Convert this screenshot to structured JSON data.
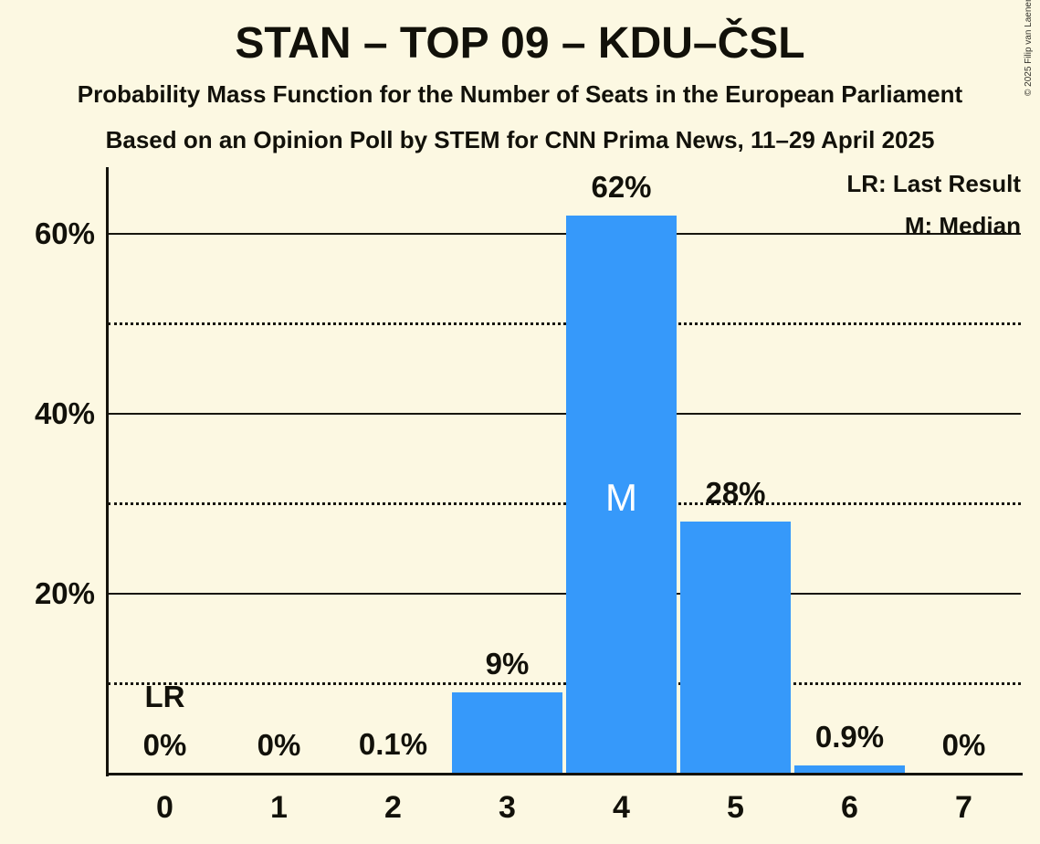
{
  "header": {
    "title": "STAN – TOP 09 – KDU–ČSL",
    "subtitle1": "Probability Mass Function for the Number of Seats in the European Parliament",
    "subtitle2": "Based on an Opinion Poll by STEM for CNN Prima News, 11–29 April 2025"
  },
  "legend": {
    "lr": "LR: Last Result",
    "m": "M: Median"
  },
  "copyright": "© 2025 Filip van Laenen",
  "colors": {
    "background": "#FCF8E2",
    "bar": "#3699FA",
    "text": "#12110A",
    "median_text": "#FFFFFF"
  },
  "chart_data": {
    "type": "bar",
    "title": "STAN – TOP 09 – KDU–ČSL",
    "categories": [
      "0",
      "1",
      "2",
      "3",
      "4",
      "5",
      "6",
      "7"
    ],
    "values": [
      0,
      0,
      0.1,
      9,
      62,
      28,
      0.9,
      0
    ],
    "bar_labels": [
      "0%",
      "0%",
      "0.1%",
      "9%",
      "62%",
      "28%",
      "0.9%",
      "0%"
    ],
    "xlabel": "",
    "ylabel": "",
    "ylim": [
      0,
      67.4
    ],
    "yticks_solid": [
      20,
      40,
      60
    ],
    "ytick_labels": [
      "20%",
      "40%",
      "60%"
    ],
    "yticks_dotted": [
      10,
      30,
      50
    ],
    "grid": "horizontal",
    "legend_position": "top-right",
    "annotations": {
      "last_result_symbol": "LR",
      "last_result_category": "0",
      "median_symbol": "M",
      "median_category": "4"
    }
  }
}
